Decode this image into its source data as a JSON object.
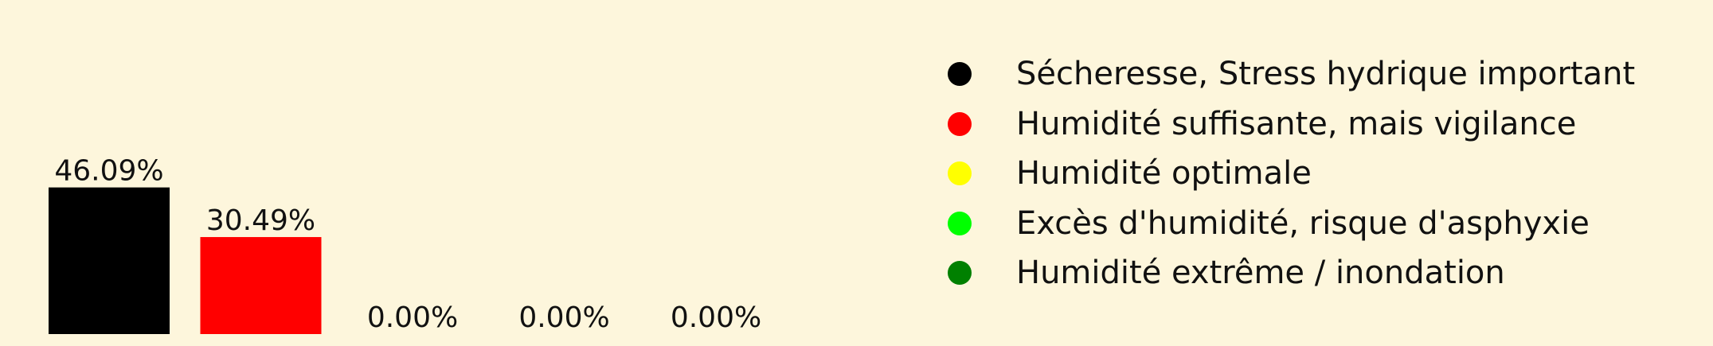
{
  "background": "#fdf6dc",
  "chart_data": {
    "type": "bar",
    "categories": [
      "Sécheresse, Stress hydrique important",
      "Humidité suffisante, mais vigilance",
      "Humidité optimale",
      "Excès d'humidité, risque d'asphyxie",
      "Humidité extrême / inondation"
    ],
    "values": [
      46.09,
      30.49,
      0.0,
      0.0,
      0.0
    ],
    "value_labels": [
      "46.09%",
      "30.49%",
      "0.00%",
      "0.00%",
      "0.00%"
    ],
    "colors": [
      "#000000",
      "#ff0000",
      "#ffff00",
      "#00ff00",
      "#008000"
    ],
    "ylim": [
      0,
      50
    ],
    "grid": false,
    "axes_visible": false,
    "legend_position": "right"
  }
}
